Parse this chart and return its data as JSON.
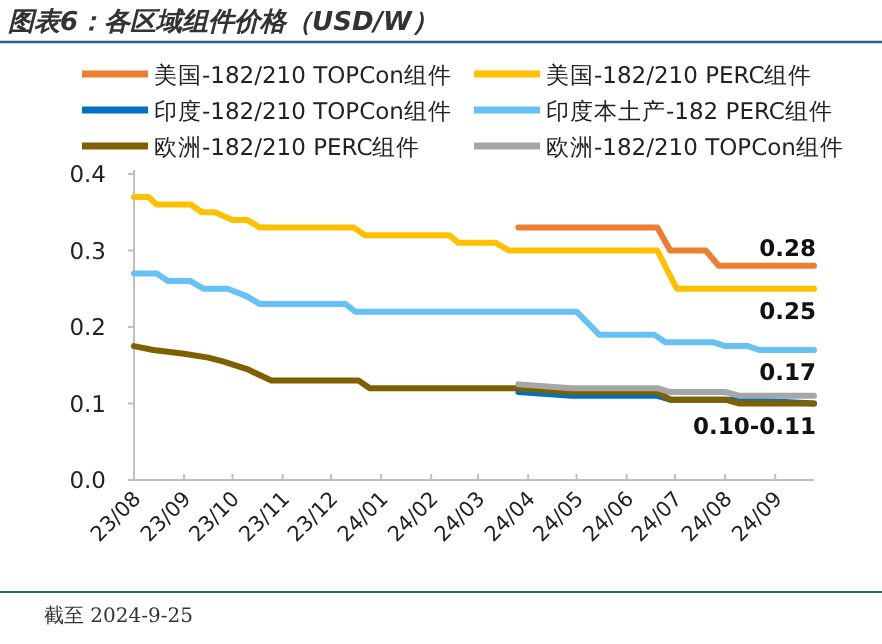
{
  "chart_data": {
    "type": "line",
    "title": "图表6：各区域组件价格（USD/W）",
    "xlim": [
      "2023-08-01",
      "2024-09-25"
    ],
    "xticks": [
      {
        "value": "2023-08-01",
        "label": "23/08"
      },
      {
        "value": "2023-09-01",
        "label": "23/09"
      },
      {
        "value": "2023-10-01",
        "label": "23/10"
      },
      {
        "value": "2023-11-01",
        "label": "23/11"
      },
      {
        "value": "2023-12-01",
        "label": "23/12"
      },
      {
        "value": "2024-01-01",
        "label": "24/01"
      },
      {
        "value": "2024-02-01",
        "label": "24/02"
      },
      {
        "value": "2024-03-01",
        "label": "24/03"
      },
      {
        "value": "2024-04-01",
        "label": "24/04"
      },
      {
        "value": "2024-05-01",
        "label": "24/05"
      },
      {
        "value": "2024-06-01",
        "label": "24/06"
      },
      {
        "value": "2024-07-01",
        "label": "24/07"
      },
      {
        "value": "2024-08-01",
        "label": "24/08"
      },
      {
        "value": "2024-09-01",
        "label": "24/09"
      }
    ],
    "ylim": [
      0,
      0.4
    ],
    "yticks": [
      {
        "value": 0,
        "label": "0.0"
      },
      0.1,
      0.2,
      0.3,
      0.4
    ],
    "legend": "top",
    "grid": false,
    "marker": "none",
    "line_style": "solid",
    "series": [
      {
        "name": "美国-182/210 TOPCon组件",
        "color": "#ed7d31",
        "x": [
          "2024-03-26",
          "2024-06-20",
          "2024-06-28",
          "2024-07-20",
          "2024-07-28",
          "2024-09-25"
        ],
        "values": [
          0.33,
          0.33,
          0.3,
          0.3,
          0.28,
          0.28
        ]
      },
      {
        "name": "美国-182/210 PERC组件",
        "color": "#ffc000",
        "x": [
          "2023-08-01",
          "2023-08-10",
          "2023-08-15",
          "2023-09-05",
          "2023-09-12",
          "2023-09-20",
          "2023-10-01",
          "2023-10-10",
          "2023-10-18",
          "2023-12-15",
          "2023-12-22",
          "2024-02-12",
          "2024-02-18",
          "2024-03-12",
          "2024-03-20",
          "2024-06-20",
          "2024-07-02",
          "2024-09-25"
        ],
        "values": [
          0.37,
          0.37,
          0.36,
          0.36,
          0.35,
          0.35,
          0.34,
          0.34,
          0.33,
          0.33,
          0.32,
          0.32,
          0.31,
          0.31,
          0.3,
          0.3,
          0.25,
          0.25
        ]
      },
      {
        "name": "印度-182/210 TOPCon组件",
        "color": "#0070c0",
        "x": [
          "2024-03-26",
          "2024-04-28",
          "2024-06-20",
          "2024-06-28",
          "2024-08-10",
          "2024-09-25"
        ],
        "values": [
          0.115,
          0.11,
          0.11,
          0.105,
          0.105,
          0.1
        ]
      },
      {
        "name": "印度本土产-182 PERC组件",
        "color": "#66c2f5",
        "x": [
          "2023-08-01",
          "2023-08-15",
          "2023-08-22",
          "2023-09-05",
          "2023-09-13",
          "2023-09-28",
          "2023-10-10",
          "2023-10-18",
          "2023-12-10",
          "2023-12-16",
          "2024-05-01",
          "2024-05-15",
          "2024-06-18",
          "2024-06-25",
          "2024-07-25",
          "2024-08-01",
          "2024-08-15",
          "2024-08-22",
          "2024-09-25"
        ],
        "values": [
          0.27,
          0.27,
          0.26,
          0.26,
          0.25,
          0.25,
          0.24,
          0.23,
          0.23,
          0.22,
          0.22,
          0.19,
          0.19,
          0.18,
          0.18,
          0.175,
          0.175,
          0.17,
          0.17
        ]
      },
      {
        "name": "欧洲-182/210 PERC组件",
        "color": "#7f6000",
        "x": [
          "2023-08-01",
          "2023-08-13",
          "2023-09-01",
          "2023-09-16",
          "2023-09-25",
          "2023-10-10",
          "2023-10-25",
          "2023-12-18",
          "2023-12-25",
          "2024-03-26",
          "2024-04-28",
          "2024-06-20",
          "2024-06-28",
          "2024-08-01",
          "2024-08-10",
          "2024-09-25"
        ],
        "values": [
          0.175,
          0.17,
          0.165,
          0.16,
          0.155,
          0.145,
          0.13,
          0.13,
          0.12,
          0.12,
          0.115,
          0.115,
          0.105,
          0.105,
          0.1,
          0.1
        ]
      },
      {
        "name": "欧洲-182/210 TOPCon组件",
        "color": "#a6a6a6",
        "x": [
          "2024-03-26",
          "2024-04-28",
          "2024-06-20",
          "2024-06-28",
          "2024-08-01",
          "2024-08-10",
          "2024-09-25"
        ],
        "values": [
          0.125,
          0.12,
          0.12,
          0.115,
          0.115,
          0.11,
          0.11
        ]
      }
    ],
    "annotations": [
      {
        "text": "0.28",
        "x": "2024-09-25",
        "y": 0.28
      },
      {
        "text": "0.25",
        "x": "2024-09-25",
        "y": 0.25
      },
      {
        "text": "0.17",
        "x": "2024-09-25",
        "y": 0.17
      },
      {
        "text": "0.10-0.11",
        "x": "2024-09-25",
        "y": 0.1
      },
      "截至 2024-9-25"
    ]
  }
}
